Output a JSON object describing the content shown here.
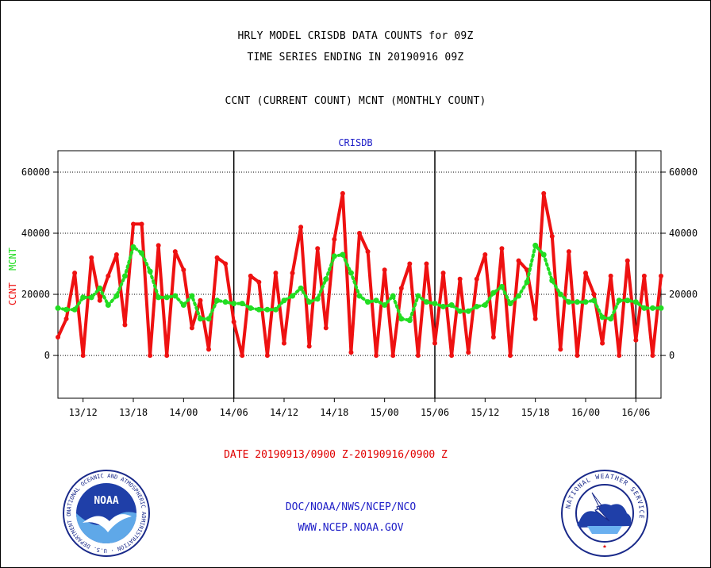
{
  "header": {
    "line1": "HRLY MODEL CRISDB DATA COUNTS for 09Z",
    "line2": "TIME SERIES ENDING IN 20190916 09Z",
    "line3": "CCNT (CURRENT COUNT) MCNT (MONTHLY COUNT)"
  },
  "footer": {
    "date_range": "DATE 20190913/0900 Z-20190916/0900 Z",
    "org": "DOC/NOAA/NWS/NCEP/NCO",
    "url": "WWW.NCEP.NOAA.GOV"
  },
  "logos": {
    "left": "NOAA",
    "left_ring": "NATIONAL OCEANIC AND ATMOSPHERIC ADMINISTRATION · U.S. DEPARTMENT OF COMMERCE",
    "right_ring": "NATIONAL WEATHER SERVICE"
  },
  "colors": {
    "ccnt": "#ee1111",
    "mcnt": "#22dd22",
    "axis_title": "#2020c8"
  },
  "chart_data": {
    "type": "line",
    "title": "CRISDB",
    "ylabel_ccnt": "CCNT",
    "ylabel_mcnt": "MCNT",
    "ylim": [
      -14000,
      67000
    ],
    "yticks": [
      0,
      20000,
      40000,
      60000
    ],
    "ytick_labels": [
      "0",
      "20000",
      "40000",
      "60000"
    ],
    "xlim": [
      0,
      72
    ],
    "xticks": [
      3,
      9,
      15,
      21,
      27,
      33,
      39,
      45,
      51,
      57,
      63,
      69
    ],
    "xtick_labels": [
      "13/12",
      "13/18",
      "14/00",
      "14/06",
      "14/12",
      "14/18",
      "15/00",
      "15/06",
      "15/12",
      "15/18",
      "16/00",
      "16/06"
    ],
    "day_boundaries": [
      21,
      45,
      69
    ],
    "grid": "horizontal dotted",
    "series": [
      {
        "name": "CCNT",
        "x": [
          0,
          1,
          2,
          3,
          4,
          5,
          6,
          7,
          8,
          9,
          10,
          11,
          12,
          13,
          14,
          15,
          16,
          17,
          18,
          19,
          20,
          21,
          22,
          23,
          24,
          25,
          26,
          27,
          28,
          29,
          30,
          31,
          32,
          33,
          34,
          35,
          36,
          37,
          38,
          39,
          40,
          41,
          42,
          43,
          44,
          45,
          46,
          47,
          48,
          49,
          50,
          51,
          52,
          53,
          54,
          55,
          56,
          57,
          58,
          59,
          60,
          61,
          62,
          63,
          64,
          65,
          66,
          67,
          68,
          69,
          70,
          71,
          72
        ],
        "values": [
          6000,
          12000,
          27000,
          0,
          32000,
          18000,
          26000,
          33000,
          10000,
          43000,
          43000,
          0,
          36000,
          0,
          34000,
          28000,
          9000,
          18000,
          2000,
          32000,
          30000,
          11000,
          0,
          26000,
          24000,
          0,
          27000,
          4000,
          27000,
          42000,
          3000,
          35000,
          9000,
          38000,
          53000,
          1000,
          40000,
          34000,
          0,
          28000,
          0,
          22000,
          30000,
          0,
          30000,
          4000,
          27000,
          0,
          25000,
          1000,
          25000,
          33000,
          6000,
          35000,
          0,
          31000,
          28000,
          12000,
          53000,
          39000,
          2000,
          34000,
          0,
          27000,
          20000,
          4000,
          26000,
          0,
          31000,
          5000,
          26000,
          0,
          26000
        ]
      },
      {
        "name": "MCNT",
        "x": [
          0,
          1,
          2,
          3,
          4,
          5,
          6,
          7,
          8,
          9,
          10,
          11,
          12,
          13,
          14,
          15,
          16,
          17,
          18,
          19,
          20,
          21,
          22,
          23,
          24,
          25,
          26,
          27,
          28,
          29,
          30,
          31,
          32,
          33,
          34,
          35,
          36,
          37,
          38,
          39,
          40,
          41,
          42,
          43,
          44,
          45,
          46,
          47,
          48,
          49,
          50,
          51,
          52,
          53,
          54,
          55,
          56,
          57,
          58,
          59,
          60,
          61,
          62,
          63,
          64,
          65,
          66,
          67,
          68,
          69,
          70,
          71,
          72
        ],
        "values": [
          15500,
          15000,
          15000,
          19000,
          19000,
          22000,
          16500,
          19500,
          26000,
          35500,
          33500,
          27500,
          19000,
          19000,
          19500,
          16500,
          19500,
          12000,
          12000,
          18000,
          17500,
          17000,
          17000,
          15500,
          15000,
          15000,
          15000,
          18000,
          19500,
          22000,
          17500,
          18500,
          25000,
          32500,
          33000,
          27000,
          19500,
          17500,
          18000,
          16500,
          19500,
          12000,
          11500,
          19500,
          17500,
          17000,
          16000,
          16500,
          14500,
          14500,
          16000,
          16500,
          20500,
          22500,
          17000,
          19500,
          24000,
          36000,
          33000,
          24500,
          20000,
          17500,
          17500,
          17500,
          18000,
          12500,
          12000,
          18000,
          18000,
          17500,
          15500,
          15500,
          15500
        ]
      }
    ]
  }
}
